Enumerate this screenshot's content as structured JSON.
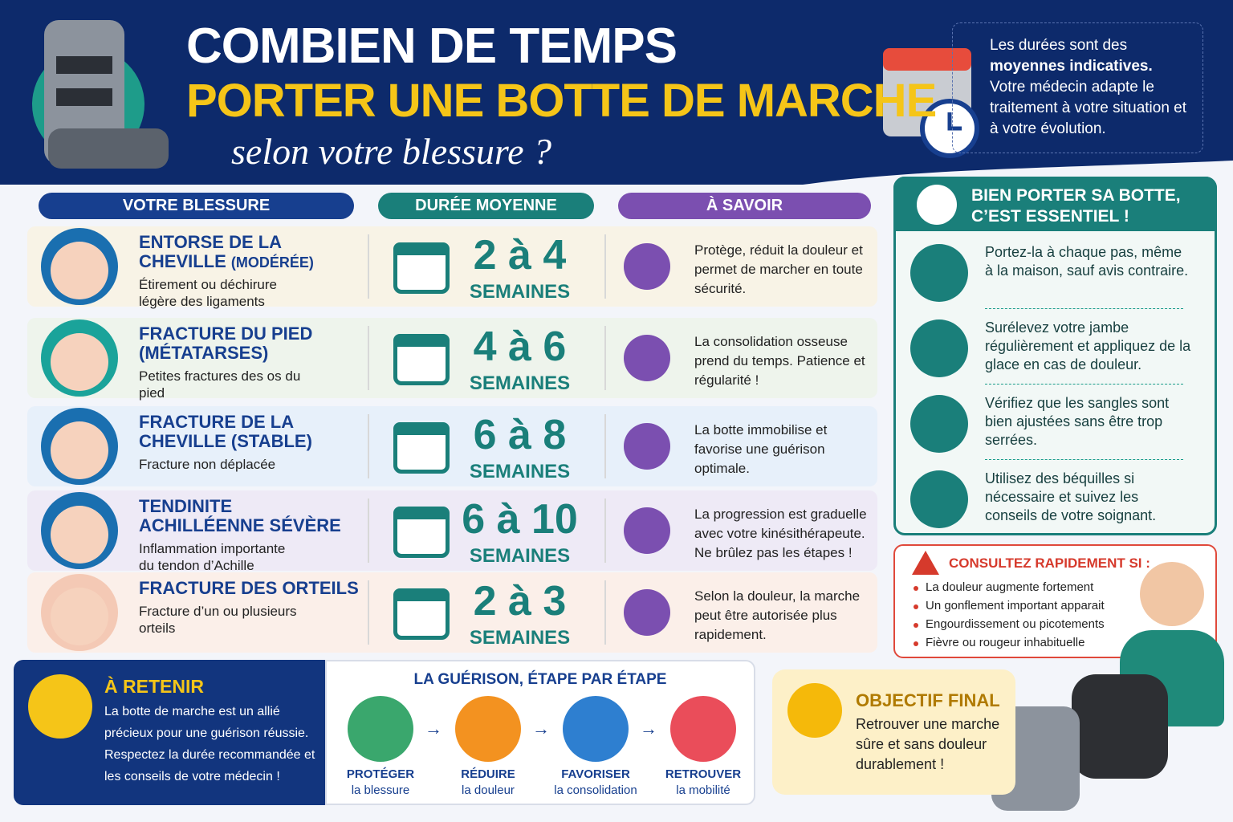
{
  "header": {
    "title_line1": "COMBIEN DE TEMPS",
    "title_line2": "PORTER UNE BOTTE DE MARCHE",
    "subtitle": "selon votre blessure ?"
  },
  "note": {
    "intro": "Les durées sont des",
    "emphasis": "moyennes indicatives.",
    "text": "Votre médecin adapte le traitement à votre situation et à votre évolution."
  },
  "table": {
    "headers": [
      "VOTRE BLESSURE",
      "DURÉE MOYENNE",
      "À SAVOIR"
    ],
    "rows": [
      {
        "injury": "ENTORSE DE LA CHEVILLE",
        "qualifier": "(MODÉRÉE)",
        "description": "Étirement ou déchirure légère des ligaments",
        "duration": "2 à 4",
        "unit": "SEMAINES",
        "info": "Protège, réduit la douleur et permet de marcher en toute sécurité."
      },
      {
        "injury": "FRACTURE DU PIED (MÉTATARSES)",
        "description": "Petites fractures des os du pied",
        "duration": "4 à 6",
        "unit": "SEMAINES",
        "info": "La consolidation osseuse prend du temps. Patience et régularité !"
      },
      {
        "injury": "FRACTURE DE LA CHEVILLE (STABLE)",
        "description": "Fracture non déplacée",
        "duration": "6 à 8",
        "unit": "SEMAINES",
        "info": "La botte immobilise et favorise une guérison optimale."
      },
      {
        "injury": "TENDINITE ACHILLÉENNE SÉVÈRE",
        "description": "Inflammation importante du tendon d’Achille",
        "duration": "6 à 10",
        "unit": "SEMAINES",
        "info": "La progression est graduelle avec votre kinésithérapeute. Ne brûlez pas les étapes !"
      },
      {
        "injury": "FRACTURE DES ORTEILS",
        "description": "Fracture d’un ou plusieurs orteils",
        "duration": "2 à 3",
        "unit": "SEMAINES",
        "info": "Selon la douleur, la marche peut être autorisée plus rapidement."
      }
    ]
  },
  "tips": {
    "title": "BIEN PORTER SA BOTTE, C’EST ESSENTIEL !",
    "items": [
      "Portez-la à chaque pas, même à la maison, sauf avis contraire.",
      "Surélevez votre jambe régulièrement et appliquez de la glace en cas de douleur.",
      "Vérifiez que les sangles sont bien ajustées sans être trop serrées.",
      "Utilisez des béquilles si nécessaire et suivez les conseils de votre soignant."
    ]
  },
  "consult": {
    "title": "CONSULTEZ RAPIDEMENT SI :",
    "items": [
      "La douleur augmente fortement",
      "Un gonflement important apparait",
      "Engourdissement ou picotements",
      "Fièvre ou rougeur inhabituelle"
    ]
  },
  "retenir": {
    "title": "À RETENIR",
    "text": "La botte de marche est un allié précieux pour une guérison réussie. Respectez la durée recommandée et les conseils de votre médecin !"
  },
  "steps": {
    "title": "LA GUÉRISON, ÉTAPE PAR ÉTAPE",
    "items": [
      {
        "label": "PROTÉGER",
        "sub": "la blessure"
      },
      {
        "label": "RÉDUIRE",
        "sub": "la douleur"
      },
      {
        "label": "FAVORISER",
        "sub": "la consolidation"
      },
      {
        "label": "RETROUVER",
        "sub": "la mobilité"
      }
    ]
  },
  "objectif": {
    "title": "OBJECTIF FINAL",
    "text": "Retrouver une marche sûre et sans douleur durablement !"
  }
}
